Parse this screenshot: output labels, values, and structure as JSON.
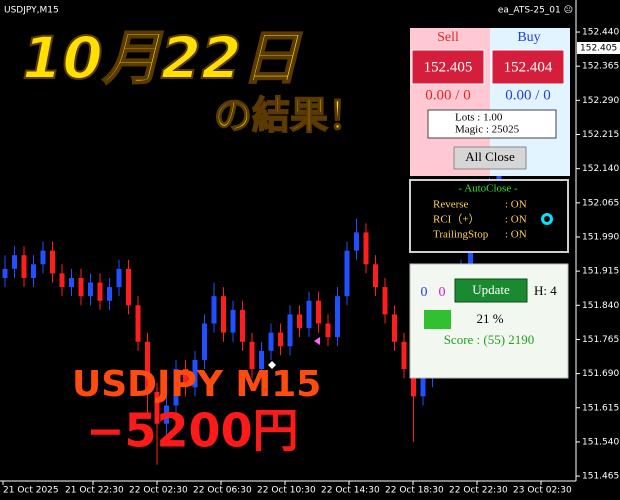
{
  "chart_data": {
    "type": "candlestick",
    "symbol_label": "USDJPY,M15",
    "ea_label": "ea_ATS-25_01 ☹",
    "x_labels": [
      "21 Oct 2025",
      "21 Oct 22:30",
      "22 Oct 02:30",
      "22 Oct 06:30",
      "22 Oct 10:30",
      "22 Oct 14:30",
      "22 Oct 18:30",
      "22 Oct 22:30",
      "23 Oct 02:30"
    ],
    "ylim": [
      151.452,
      152.484
    ],
    "yticks": [
      {
        "value": 152.44,
        "label": "152.440"
      },
      152.365,
      {
        "value": 152.29,
        "label": "152.290"
      },
      152.215,
      {
        "value": 152.14,
        "label": "152.140"
      },
      152.065,
      {
        "value": 151.99,
        "label": "151.990"
      },
      151.915,
      {
        "value": 151.84,
        "label": "151.840"
      },
      151.765,
      {
        "value": 151.69,
        "label": "151.690"
      },
      151.615,
      {
        "value": 151.54,
        "label": "151.540"
      },
      151.465
    ],
    "current_price": 152.405,
    "up_color": "#2050ff",
    "down_color": "#ff1e1e",
    "candles": [
      {
        "open": 151.9,
        "high": 151.95,
        "low": 151.88,
        "close": 151.92
      },
      {
        "open": 151.92,
        "high": 151.97,
        "low": 151.9,
        "close": 151.95
      },
      {
        "open": 151.95,
        "high": 151.97,
        "low": 151.88,
        "close": 151.9
      },
      {
        "open": 151.9,
        "high": 151.95,
        "low": 151.88,
        "close": 151.93
      },
      {
        "open": 151.93,
        "high": 151.98,
        "low": 151.91,
        "close": 151.96
      },
      {
        "open": 151.96,
        "high": 151.98,
        "low": 151.89,
        "close": 151.91
      },
      {
        "open": 151.91,
        "high": 151.93,
        "low": 151.86,
        "close": 151.88
      },
      {
        "open": 151.88,
        "high": 151.92,
        "low": 151.86,
        "close": 151.9
      },
      {
        "open": 151.9,
        "high": 151.92,
        "low": 151.84,
        "close": 151.86
      },
      {
        "open": 151.86,
        "high": 151.91,
        "low": 151.84,
        "close": 151.89
      },
      {
        "open": 151.89,
        "high": 151.91,
        "low": 151.83,
        "close": 151.85
      },
      {
        "open": 151.85,
        "high": 151.9,
        "low": 151.83,
        "close": 151.88
      },
      {
        "open": 151.88,
        "high": 151.94,
        "low": 151.86,
        "close": 151.92
      },
      {
        "open": 151.92,
        "high": 151.94,
        "low": 151.82,
        "close": 151.84
      },
      {
        "open": 151.84,
        "high": 151.86,
        "low": 151.74,
        "close": 151.76
      },
      {
        "open": 151.76,
        "high": 151.78,
        "low": 151.6,
        "close": 151.65
      },
      {
        "open": 151.65,
        "high": 151.67,
        "low": 151.49,
        "close": 151.58
      },
      {
        "open": 151.58,
        "high": 151.64,
        "low": 151.55,
        "close": 151.62
      },
      {
        "open": 151.62,
        "high": 151.72,
        "low": 151.6,
        "close": 151.7
      },
      {
        "open": 151.7,
        "high": 151.72,
        "low": 151.64,
        "close": 151.66
      },
      {
        "open": 151.66,
        "high": 151.74,
        "low": 151.64,
        "close": 151.72
      },
      {
        "open": 151.72,
        "high": 151.82,
        "low": 151.7,
        "close": 151.8
      },
      {
        "open": 151.8,
        "high": 151.89,
        "low": 151.78,
        "close": 151.86
      },
      {
        "open": 151.86,
        "high": 151.88,
        "low": 151.76,
        "close": 151.78
      },
      {
        "open": 151.78,
        "high": 151.85,
        "low": 151.76,
        "close": 151.83
      },
      {
        "open": 151.83,
        "high": 151.85,
        "low": 151.74,
        "close": 151.76
      },
      {
        "open": 151.76,
        "high": 151.78,
        "low": 151.68,
        "close": 151.7
      },
      {
        "open": 151.7,
        "high": 151.76,
        "low": 151.68,
        "close": 151.74
      },
      {
        "open": 151.74,
        "high": 151.8,
        "low": 151.72,
        "close": 151.78
      },
      {
        "open": 151.78,
        "high": 151.8,
        "low": 151.73,
        "close": 151.75
      },
      {
        "open": 151.75,
        "high": 151.84,
        "low": 151.73,
        "close": 151.82
      },
      {
        "open": 151.82,
        "high": 151.84,
        "low": 151.77,
        "close": 151.79
      },
      {
        "open": 151.79,
        "high": 151.87,
        "low": 151.77,
        "close": 151.85
      },
      {
        "open": 151.85,
        "high": 151.87,
        "low": 151.78,
        "close": 151.8
      },
      {
        "open": 151.8,
        "high": 151.82,
        "low": 151.75,
        "close": 151.77
      },
      {
        "open": 151.77,
        "high": 151.88,
        "low": 151.75,
        "close": 151.86
      },
      {
        "open": 151.86,
        "high": 151.98,
        "low": 151.84,
        "close": 151.96
      },
      {
        "open": 151.96,
        "high": 152.03,
        "low": 151.94,
        "close": 152.0
      },
      {
        "open": 152.0,
        "high": 152.02,
        "low": 151.91,
        "close": 151.93
      },
      {
        "open": 151.93,
        "high": 151.95,
        "low": 151.86,
        "close": 151.88
      },
      {
        "open": 151.88,
        "high": 151.9,
        "low": 151.8,
        "close": 151.82
      },
      {
        "open": 151.82,
        "high": 151.84,
        "low": 151.74,
        "close": 151.76
      },
      {
        "open": 151.76,
        "high": 151.78,
        "low": 151.68,
        "close": 151.7
      },
      {
        "open": 151.7,
        "high": 151.72,
        "low": 151.54,
        "close": 151.64
      },
      {
        "open": 151.64,
        "high": 151.7,
        "low": 151.62,
        "close": 151.68
      },
      {
        "open": 151.68,
        "high": 151.76,
        "low": 151.66,
        "close": 151.74
      },
      {
        "open": 151.74,
        "high": 151.82,
        "low": 151.72,
        "close": 151.8
      },
      {
        "open": 151.8,
        "high": 151.88,
        "low": 151.78,
        "close": 151.86
      },
      {
        "open": 151.86,
        "high": 151.94,
        "low": 151.84,
        "close": 151.92
      },
      {
        "open": 151.92,
        "high": 152.0,
        "low": 151.9,
        "close": 151.98
      },
      {
        "open": 151.98,
        "high": 152.06,
        "low": 151.96,
        "close": 152.04
      },
      {
        "open": 152.04,
        "high": 152.12,
        "low": 152.02,
        "close": 152.1
      },
      {
        "open": 152.1,
        "high": 152.18,
        "low": 152.08,
        "close": 152.16
      },
      {
        "open": 152.16,
        "high": 152.24,
        "low": 152.14,
        "close": 152.22
      },
      {
        "open": 152.22,
        "high": 152.3,
        "low": 152.2,
        "close": 152.28
      },
      {
        "open": 152.28,
        "high": 152.35,
        "low": 152.26,
        "close": 152.33
      },
      {
        "open": 152.33,
        "high": 152.39,
        "low": 152.31,
        "close": 152.37
      },
      {
        "open": 152.37,
        "high": 152.42,
        "low": 152.35,
        "close": 152.4
      },
      {
        "open": 152.4,
        "high": 152.42,
        "low": 152.36,
        "close": 152.38
      },
      {
        "open": 152.38,
        "high": 152.42,
        "low": 152.36,
        "close": 152.405
      }
    ]
  },
  "overlay_text": {
    "date_title": "10月22日",
    "result_title": "の結果！",
    "pair": "USDJPY M15",
    "profit": "−5200円"
  },
  "panels": {
    "trade": {
      "sell_label": "Sell",
      "buy_label": "Buy",
      "sell_price": "152.405",
      "buy_price": "152.404",
      "sell_pl": "0.00 / 0",
      "buy_pl": "0.00 / 0",
      "lots": "Lots   : 1.00",
      "magic": "Magic : 25025",
      "close_button": "All Close"
    },
    "autoclose": {
      "title": "- AutoClose -",
      "rows": [
        [
          "Reverse",
          ": ON"
        ],
        [
          "RCI（+）",
          ": ON"
        ],
        [
          "TrailingStop",
          ": ON"
        ]
      ]
    },
    "status": {
      "count_buy": "0",
      "count_sell": "0",
      "update_button": "Update",
      "h": "H: 4",
      "percent": "21 %",
      "score": "Score : (55) 2190"
    }
  }
}
